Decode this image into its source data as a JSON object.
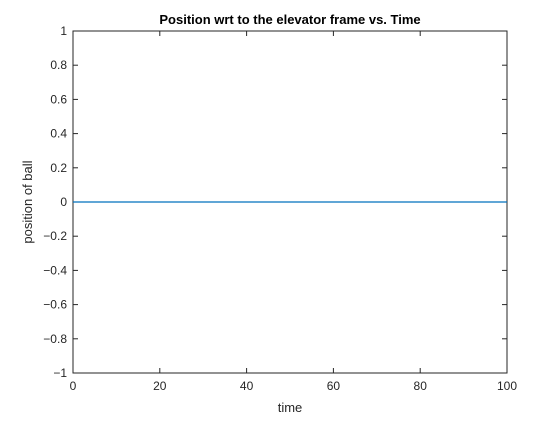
{
  "chart_data": {
    "type": "line",
    "title": "Position wrt to the elevator frame vs. Time",
    "xlabel": "time",
    "ylabel": "position of ball",
    "xlim": [
      0,
      100
    ],
    "ylim": [
      -1,
      1
    ],
    "xticks": [
      0,
      20,
      40,
      60,
      80,
      100
    ],
    "xtick_labels": [
      "0",
      "20",
      "40",
      "60",
      "80",
      "100"
    ],
    "yticks": [
      -1,
      -0.8,
      -0.6,
      -0.4,
      -0.2,
      0,
      0.2,
      0.4,
      0.6,
      0.8,
      1
    ],
    "ytick_labels": [
      "−1",
      "−0.8",
      "−0.6",
      "−0.4",
      "−0.2",
      "0",
      "0.2",
      "0.4",
      "0.6",
      "0.8",
      "1"
    ],
    "grid": false,
    "series": [
      {
        "color": "#0072BD",
        "x": [
          0,
          100
        ],
        "y": [
          0,
          0
        ]
      }
    ]
  }
}
